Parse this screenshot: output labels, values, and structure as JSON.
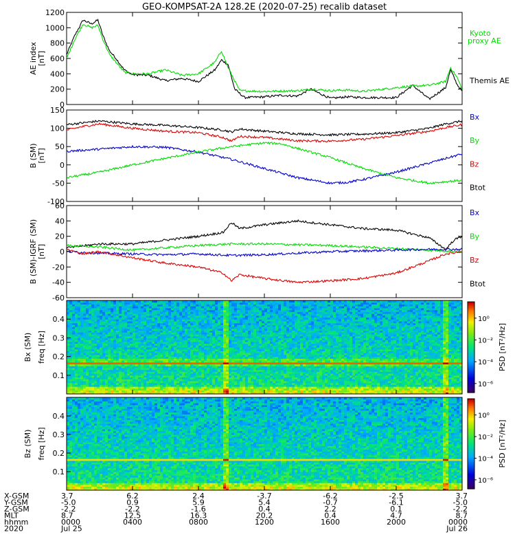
{
  "title": "GEO-KOMPSAT-2A 128.2E (2020-07-25) recalib dataset",
  "colors": {
    "black": "#000000",
    "blue": "#0000cc",
    "green": "#00dd00",
    "red": "#dd0000"
  },
  "chart_data": [
    {
      "type": "line",
      "ylabel": "AE index",
      "yunit": "[nT]",
      "ylim": [
        0,
        1200
      ],
      "yticks": [
        "0",
        "200",
        "400",
        "600",
        "800",
        "1000",
        "1200"
      ],
      "x_unit": "hours UT",
      "legend": [
        "Kyoto proxy AE",
        "Themis AE"
      ],
      "series": [
        {
          "name": "Themis AE",
          "color": "#000000",
          "points": [
            [
              0,
              650
            ],
            [
              0.5,
              900
            ],
            [
              1,
              1100
            ],
            [
              1.5,
              1050
            ],
            [
              1.9,
              1100
            ],
            [
              2.2,
              900
            ],
            [
              2.6,
              700
            ],
            [
              3,
              600
            ],
            [
              3.5,
              450
            ],
            [
              4,
              390
            ],
            [
              5,
              380
            ],
            [
              6,
              310
            ],
            [
              7,
              340
            ],
            [
              8,
              300
            ],
            [
              9,
              450
            ],
            [
              9.4,
              580
            ],
            [
              9.8,
              520
            ],
            [
              10.2,
              200
            ],
            [
              10.8,
              90
            ],
            [
              12,
              100
            ],
            [
              13,
              120
            ],
            [
              14,
              110
            ],
            [
              14.8,
              200
            ],
            [
              15.3,
              150
            ],
            [
              16,
              80
            ],
            [
              17,
              100
            ],
            [
              18,
              90
            ],
            [
              20,
              90
            ],
            [
              21,
              250
            ],
            [
              22,
              70
            ],
            [
              23,
              220
            ],
            [
              23.3,
              450
            ],
            [
              23.7,
              260
            ],
            [
              24,
              170
            ]
          ]
        },
        {
          "name": "Kyoto proxy AE",
          "color": "#00dd00",
          "points": [
            [
              0,
              600
            ],
            [
              0.5,
              850
            ],
            [
              1,
              1050
            ],
            [
              1.5,
              1000
            ],
            [
              1.9,
              1030
            ],
            [
              2.2,
              850
            ],
            [
              2.6,
              650
            ],
            [
              3,
              550
            ],
            [
              3.5,
              420
            ],
            [
              4,
              400
            ],
            [
              5,
              400
            ],
            [
              6,
              450
            ],
            [
              7,
              380
            ],
            [
              8,
              400
            ],
            [
              9,
              550
            ],
            [
              9.4,
              700
            ],
            [
              9.8,
              480
            ],
            [
              10.5,
              180
            ],
            [
              12,
              170
            ],
            [
              14,
              180
            ],
            [
              15,
              200
            ],
            [
              16,
              180
            ],
            [
              17,
              190
            ],
            [
              18,
              170
            ],
            [
              20,
              220
            ],
            [
              21,
              240
            ],
            [
              22,
              250
            ],
            [
              23,
              300
            ],
            [
              23.3,
              480
            ],
            [
              23.7,
              350
            ],
            [
              24,
              200
            ]
          ]
        }
      ]
    },
    {
      "type": "line",
      "ylabel": "B (SM)",
      "yunit": "[nT]",
      "ylim": [
        -100,
        150
      ],
      "yticks": [
        "-100",
        "-50",
        "0",
        "50",
        "100",
        "150"
      ],
      "x_unit": "hours UT",
      "legend": [
        "Bx",
        "By",
        "Bz",
        "Btot"
      ],
      "series": [
        {
          "name": "Btot",
          "color": "#000000",
          "points": [
            [
              0,
              110
            ],
            [
              1,
              115
            ],
            [
              2,
              120
            ],
            [
              4,
              112
            ],
            [
              6,
              108
            ],
            [
              8,
              102
            ],
            [
              9.5,
              95
            ],
            [
              10,
              90
            ],
            [
              10.5,
              98
            ],
            [
              12,
              92
            ],
            [
              14,
              85
            ],
            [
              16,
              82
            ],
            [
              18,
              84
            ],
            [
              20,
              88
            ],
            [
              22,
              100
            ],
            [
              23,
              112
            ],
            [
              24,
              120
            ]
          ]
        },
        {
          "name": "Bz",
          "color": "#dd0000",
          "points": [
            [
              0,
              95
            ],
            [
              1,
              105
            ],
            [
              2,
              112
            ],
            [
              4,
              100
            ],
            [
              6,
              92
            ],
            [
              8,
              88
            ],
            [
              9.5,
              75
            ],
            [
              10,
              65
            ],
            [
              10.5,
              78
            ],
            [
              12,
              75
            ],
            [
              14,
              66
            ],
            [
              16,
              65
            ],
            [
              18,
              70
            ],
            [
              20,
              80
            ],
            [
              22,
              92
            ],
            [
              23,
              102
            ],
            [
              24,
              110
            ]
          ]
        },
        {
          "name": "Bx",
          "color": "#0000cc",
          "points": [
            [
              0,
              37
            ],
            [
              2,
              43
            ],
            [
              4,
              50
            ],
            [
              6,
              48
            ],
            [
              8,
              35
            ],
            [
              10,
              15
            ],
            [
              12,
              -10
            ],
            [
              14,
              -35
            ],
            [
              16,
              -50
            ],
            [
              17,
              -48
            ],
            [
              18,
              -40
            ],
            [
              20,
              -20
            ],
            [
              22,
              5
            ],
            [
              24,
              30
            ]
          ]
        },
        {
          "name": "By",
          "color": "#00dd00",
          "points": [
            [
              0,
              -35
            ],
            [
              2,
              -20
            ],
            [
              4,
              0
            ],
            [
              6,
              18
            ],
            [
              8,
              35
            ],
            [
              10,
              50
            ],
            [
              12,
              60
            ],
            [
              13,
              58
            ],
            [
              14,
              45
            ],
            [
              16,
              20
            ],
            [
              18,
              -10
            ],
            [
              20,
              -35
            ],
            [
              22,
              -50
            ],
            [
              24,
              -42
            ]
          ]
        }
      ]
    },
    {
      "type": "line",
      "ylabel": "B (SM)-IGRF (SM)",
      "yunit": "[nT]",
      "ylim": [
        -60,
        60
      ],
      "yticks": [
        "-60",
        "-40",
        "-20",
        "0",
        "20",
        "40",
        "60"
      ],
      "x_unit": "hours UT",
      "legend": [
        "Bx",
        "By",
        "Bz",
        "Btot"
      ],
      "series": [
        {
          "name": "Btot",
          "color": "#000000",
          "points": [
            [
              0,
              5
            ],
            [
              2,
              10
            ],
            [
              4,
              10
            ],
            [
              6,
              15
            ],
            [
              8,
              20
            ],
            [
              9.5,
              25
            ],
            [
              10,
              38
            ],
            [
              10.5,
              30
            ],
            [
              12,
              35
            ],
            [
              14,
              40
            ],
            [
              16,
              35
            ],
            [
              18,
              30
            ],
            [
              20,
              28
            ],
            [
              22,
              18
            ],
            [
              23,
              3
            ],
            [
              23.5,
              15
            ],
            [
              24,
              20
            ]
          ]
        },
        {
          "name": "By",
          "color": "#00dd00",
          "points": [
            [
              0,
              8
            ],
            [
              2,
              6
            ],
            [
              4,
              2
            ],
            [
              6,
              5
            ],
            [
              8,
              8
            ],
            [
              10,
              10
            ],
            [
              12,
              10
            ],
            [
              14,
              9
            ],
            [
              16,
              8
            ],
            [
              18,
              6
            ],
            [
              20,
              4
            ],
            [
              22,
              2
            ],
            [
              24,
              0
            ]
          ]
        },
        {
          "name": "Bx",
          "color": "#0000cc",
          "points": [
            [
              0,
              0
            ],
            [
              2,
              -2
            ],
            [
              4,
              -3
            ],
            [
              6,
              -4
            ],
            [
              8,
              -3
            ],
            [
              10,
              -5
            ],
            [
              12,
              -4
            ],
            [
              14,
              -2
            ],
            [
              16,
              0
            ],
            [
              18,
              1
            ],
            [
              20,
              2
            ],
            [
              22,
              3
            ],
            [
              24,
              3
            ]
          ]
        },
        {
          "name": "Bz",
          "color": "#dd0000",
          "points": [
            [
              0,
              3
            ],
            [
              1,
              -3
            ],
            [
              2,
              0
            ],
            [
              4,
              -8
            ],
            [
              6,
              -15
            ],
            [
              8,
              -20
            ],
            [
              9.5,
              -28
            ],
            [
              10,
              -38
            ],
            [
              10.5,
              -30
            ],
            [
              12,
              -35
            ],
            [
              14,
              -40
            ],
            [
              16,
              -38
            ],
            [
              18,
              -35
            ],
            [
              20,
              -28
            ],
            [
              22,
              -12
            ],
            [
              23,
              -3
            ],
            [
              24,
              0
            ]
          ]
        }
      ]
    },
    {
      "type": "heatmap",
      "ylabel": "Bx (SM)",
      "yunit": "freq [Hz]",
      "ylim": [
        0,
        0.5
      ],
      "yticks": [
        "0.1",
        "0.2",
        "0.3",
        "0.4"
      ],
      "colorbar_label": "PSD [nT²/Hz]",
      "colorbar_ticks": [
        "10⁰",
        "10⁻²",
        "10⁻⁴",
        "10⁻⁶"
      ]
    },
    {
      "type": "heatmap",
      "ylabel": "Bz (SM)",
      "yunit": "freq [Hz]",
      "ylim": [
        0,
        0.5
      ],
      "yticks": [
        "0.1",
        "0.2",
        "0.3",
        "0.4"
      ],
      "colorbar_label": "PSD [nT²/Hz]",
      "colorbar_ticks": [
        "10⁰",
        "10⁻²",
        "10⁻⁴",
        "10⁻⁶"
      ]
    }
  ],
  "x_axis": {
    "row_labels": [
      "X-GSM",
      "Y-GSM",
      "Z-GSM",
      "MLT",
      "hhmm",
      "2020"
    ],
    "columns": [
      [
        "3.7",
        "-5.0",
        "-2.2",
        "8.7",
        "0000",
        "Jul 25"
      ],
      [
        "6.2",
        "0.9",
        "-2.2",
        "12.5",
        "0400",
        ""
      ],
      [
        "2.4",
        "5.9",
        "-1.6",
        "16.3",
        "0800",
        ""
      ],
      [
        "-3.7",
        "5.4",
        "0.4",
        "20.2",
        "1200",
        ""
      ],
      [
        "-6.2",
        "-0.7",
        "2.2",
        "0.4",
        "1600",
        ""
      ],
      [
        "-2.5",
        "-6.1",
        "0.1",
        "4.7",
        "2000",
        ""
      ],
      [
        "3.7",
        "-5.0",
        "-2.2",
        "8.7",
        "0000",
        "Jul 26"
      ]
    ]
  }
}
